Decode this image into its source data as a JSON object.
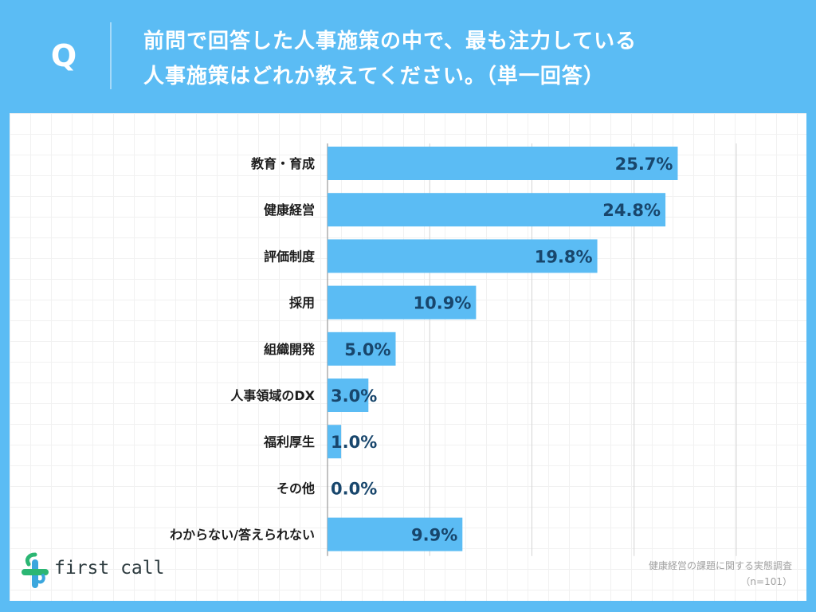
{
  "header": {
    "q_label": "Q",
    "question_line1": "前問で回答した人事施策の中で、最も注力している",
    "question_line2": "人事施策はどれか教えてください。（単一回答）"
  },
  "chart_data": {
    "type": "bar",
    "orientation": "horizontal",
    "categories": [
      "教育・育成",
      "健康経営",
      "評価制度",
      "採用",
      "組織開発",
      "人事領域のDX",
      "福利厚生",
      "その他",
      "わからない/答えられない"
    ],
    "values": [
      25.7,
      24.8,
      19.8,
      10.9,
      5.0,
      3.0,
      1.0,
      0.0,
      9.9
    ],
    "value_labels": [
      "25.7%",
      "24.8%",
      "19.8%",
      "10.9%",
      "5.0%",
      "3.0%",
      "1.0%",
      "0.0%",
      "9.9%"
    ],
    "xlim": [
      0,
      30
    ],
    "grid": true,
    "bar_color": "#5bbcf4"
  },
  "logo": {
    "text": "first call"
  },
  "source": {
    "line1": "健康経営の課題に関する実態調査",
    "line2": "（n=101）"
  },
  "colors": {
    "background": "#5bbcf4",
    "bar": "#5bbcf4",
    "value_text": "#18466c",
    "logo_green": "#2bb673",
    "logo_blue": "#3aa6dd"
  }
}
